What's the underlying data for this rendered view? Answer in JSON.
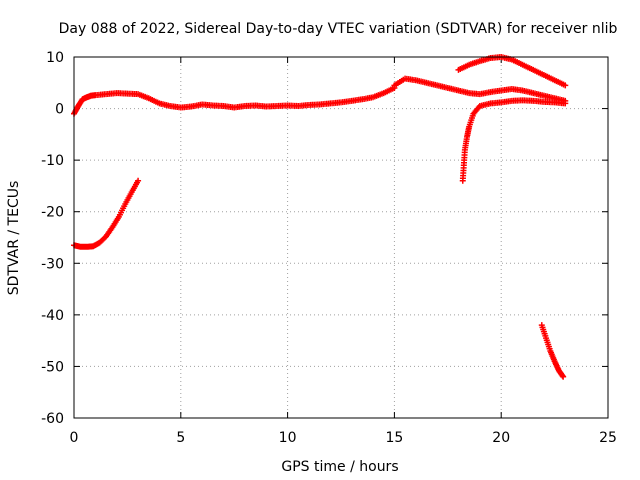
{
  "chart_data": {
    "type": "scatter",
    "title": "Day 088 of 2022, Sidereal Day-to-day VTEC variation (SDTVAR) for receiver nlib",
    "xlabel": "GPS time / hours",
    "ylabel": "SDTVAR / TECUs",
    "xlim": [
      0,
      25
    ],
    "ylim": [
      -60,
      10
    ],
    "xticks": [
      0,
      5,
      10,
      15,
      20,
      25
    ],
    "xtick_labels": [
      "0",
      "5",
      "10",
      "15",
      "20",
      "25"
    ],
    "yticks": [
      10,
      0,
      -10,
      -20,
      -30,
      -40,
      -50,
      -60
    ],
    "ytick_labels": [
      "10",
      "0",
      "-10",
      "-20",
      "-30",
      "-40",
      "-50",
      "-60"
    ],
    "grid": true,
    "marker": "plus",
    "color": "#ff0000",
    "series": [
      {
        "name": "arc-main-0-15",
        "x": [
          0.0,
          0.2,
          0.4,
          0.6,
          0.8,
          1.0,
          1.5,
          2.0,
          2.5,
          3.0,
          3.5,
          4.0,
          4.5,
          5.0,
          5.5,
          6.0,
          6.5,
          7.0,
          7.5,
          8.0,
          8.5,
          9.0,
          9.5,
          10.0,
          10.5,
          11.0,
          11.5,
          12.0,
          12.5,
          13.0,
          13.5,
          14.0,
          14.5,
          15.0
        ],
        "y": [
          -1.0,
          0.5,
          1.8,
          2.2,
          2.5,
          2.6,
          2.8,
          3.0,
          2.9,
          2.8,
          2.0,
          1.0,
          0.5,
          0.2,
          0.4,
          0.8,
          0.6,
          0.5,
          0.2,
          0.5,
          0.6,
          0.4,
          0.5,
          0.6,
          0.5,
          0.7,
          0.8,
          1.0,
          1.2,
          1.5,
          1.8,
          2.2,
          3.0,
          4.0
        ]
      },
      {
        "name": "arc-main-15-23",
        "x": [
          15.0,
          15.5,
          16.0,
          16.5,
          17.0,
          17.5,
          18.0,
          18.5,
          19.0,
          19.5,
          20.0,
          20.5,
          21.0,
          21.5,
          22.0,
          22.5,
          23.0
        ],
        "y": [
          4.5,
          5.8,
          5.5,
          5.0,
          4.5,
          4.0,
          3.5,
          3.0,
          2.8,
          3.2,
          3.5,
          3.8,
          3.5,
          3.0,
          2.5,
          2.0,
          1.5
        ]
      },
      {
        "name": "arc-start-low",
        "x": [
          0.0,
          0.3,
          0.6,
          0.9,
          1.2,
          1.5,
          1.8,
          2.1,
          2.4,
          2.7,
          3.0
        ],
        "y": [
          -26.5,
          -26.8,
          -26.8,
          -26.7,
          -26.0,
          -24.8,
          -23.0,
          -21.0,
          -18.5,
          -16.2,
          -14.0
        ]
      },
      {
        "name": "arc-18h-rise",
        "x": [
          18.2,
          18.25,
          18.3,
          18.4,
          18.5,
          18.7,
          19.0,
          19.5,
          20.0,
          20.5,
          21.0,
          21.5,
          22.0,
          22.5,
          23.0
        ],
        "y": [
          -14.0,
          -11.0,
          -8.0,
          -5.5,
          -3.5,
          -1.0,
          0.5,
          1.0,
          1.2,
          1.5,
          1.6,
          1.5,
          1.3,
          1.2,
          1.0
        ]
      },
      {
        "name": "arc-18h-high",
        "x": [
          18.0,
          18.5,
          19.0,
          19.5,
          20.0,
          20.5,
          21.0,
          21.5,
          22.0,
          22.5,
          23.0
        ],
        "y": [
          7.5,
          8.5,
          9.2,
          9.8,
          10.0,
          9.5,
          8.5,
          7.5,
          6.5,
          5.5,
          4.5
        ]
      },
      {
        "name": "arc-22h-low",
        "x": [
          21.9,
          22.1,
          22.3,
          22.5,
          22.7,
          22.9
        ],
        "y": [
          -42.0,
          -44.5,
          -47.0,
          -49.0,
          -50.8,
          -52.0
        ]
      }
    ]
  }
}
